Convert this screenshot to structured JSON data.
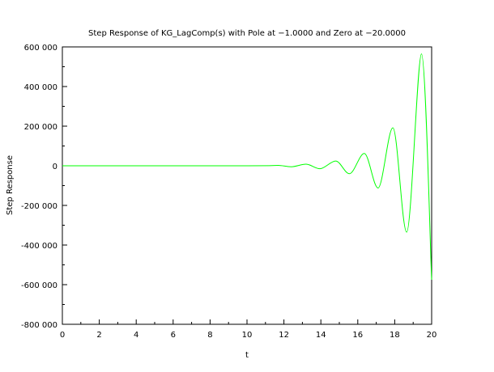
{
  "chart_data": {
    "type": "line",
    "title": "Step Response of KG_LagComp(s) with Pole at −1.0000 and Zero at −20.0000",
    "xlabel": "t",
    "ylabel": "Step Response",
    "xlim": [
      0,
      20
    ],
    "ylim": [
      -800000,
      600000
    ],
    "x_ticks": [
      0,
      2,
      4,
      6,
      8,
      10,
      12,
      14,
      16,
      18,
      20
    ],
    "x_tick_labels": [
      "0",
      "2",
      "4",
      "6",
      "8",
      "10",
      "12",
      "14",
      "16",
      "18",
      "20"
    ],
    "y_ticks": [
      -800000,
      -600000,
      -400000,
      -200000,
      0,
      200000,
      400000,
      600000
    ],
    "y_tick_labels": [
      "-800 000",
      "-600 000",
      "-400 000",
      "-200 000",
      "0",
      "200 000",
      "400 000",
      "600 000"
    ],
    "grid": false,
    "colors": {
      "line": "#00ff00",
      "axis": "#000000"
    },
    "series": [
      {
        "x": [
          0,
          2,
          4,
          6,
          8,
          10,
          11.2,
          11.7,
          12.4,
          13.2,
          13.95,
          14.8,
          15.55,
          16.35,
          17.1,
          17.9,
          18.65,
          19.45,
          20
        ],
        "y": [
          0,
          0,
          0,
          0,
          0,
          0,
          500,
          2000,
          -5000,
          8000,
          -15000,
          24000,
          -40000,
          62000,
          -112000,
          192000,
          -335000,
          565000,
          -575000
        ]
      }
    ]
  }
}
